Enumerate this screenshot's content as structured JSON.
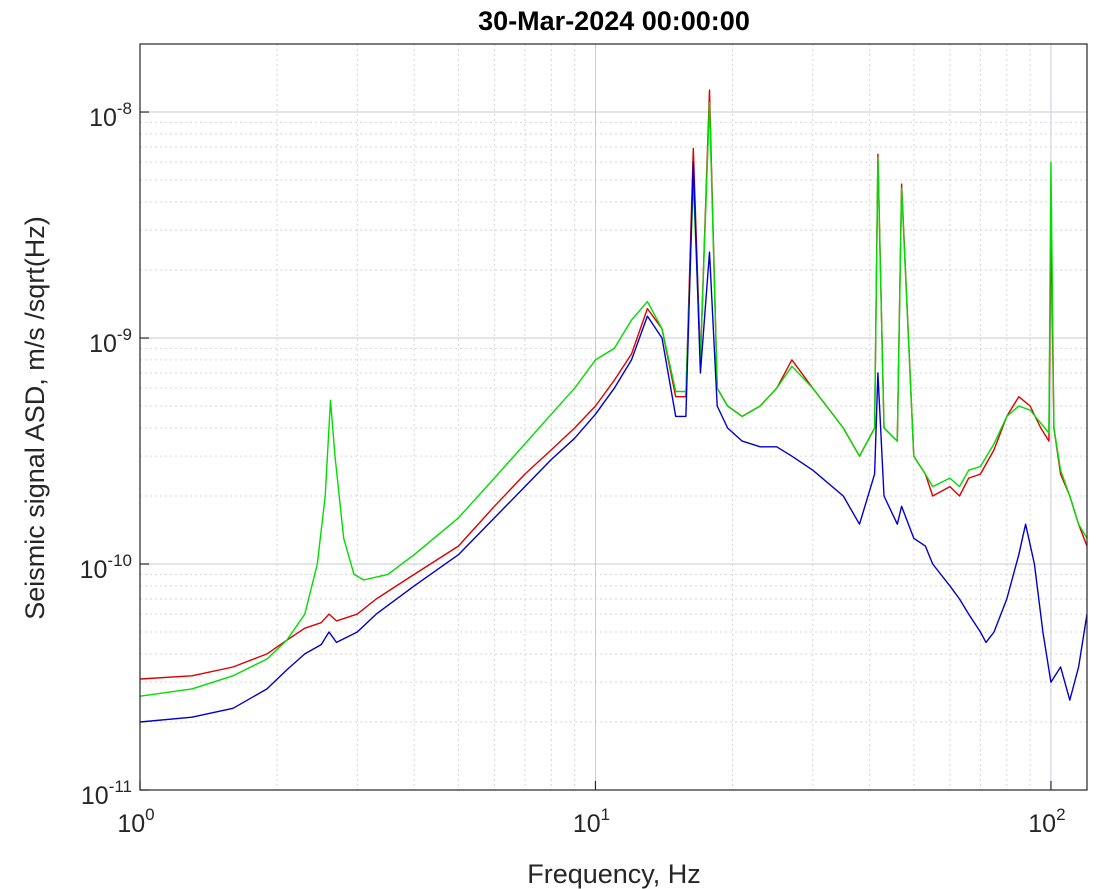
{
  "chart_data": {
    "type": "line",
    "title": "30-Mar-2024 00:00:00",
    "xlabel": "Frequency, Hz",
    "ylabel": "Seismic signal ASD, m/s /sqrt(Hz)",
    "xscale": "log",
    "yscale": "log",
    "xlim": [
      1,
      120
    ],
    "ylim": [
      1e-11,
      2e-08
    ],
    "grid": true,
    "minor_grid": true,
    "legend": "none",
    "xticks": [
      {
        "value": 1,
        "base": "10",
        "exp": "0"
      },
      {
        "value": 10,
        "base": "10",
        "exp": "1"
      },
      {
        "value": 100,
        "base": "10",
        "exp": "2"
      }
    ],
    "yticks": [
      {
        "value": 1e-11,
        "base": "10",
        "exp": "-11"
      },
      {
        "value": 1e-10,
        "base": "10",
        "exp": "-10"
      },
      {
        "value": 1e-09,
        "base": "10",
        "exp": "-9"
      },
      {
        "value": 1e-08,
        "base": "10",
        "exp": "-8"
      }
    ],
    "series": [
      {
        "color": "#dd0000",
        "x": [
          1.0,
          1.3,
          1.6,
          1.9,
          2.1,
          2.3,
          2.5,
          2.6,
          2.7,
          3.0,
          3.3,
          4.0,
          5.0,
          6.0,
          7.0,
          8.0,
          9.0,
          10.0,
          11.0,
          12.0,
          13.0,
          14.0,
          15.0,
          15.8,
          16.4,
          17.0,
          17.8,
          18.5,
          19.5,
          21.0,
          23.0,
          25.0,
          27.0,
          30.0,
          35.0,
          38.0,
          41.0,
          41.7,
          43.0,
          46.0,
          47.0,
          50.0,
          53.0,
          55.0,
          60.0,
          63.0,
          66.0,
          70.0,
          75.0,
          80.0,
          85.0,
          90.0,
          95.0,
          99.0,
          100.0,
          101.5,
          105.0,
          110.0,
          115.0,
          120.0
        ],
        "y": [
          3.1e-11,
          3.2e-11,
          3.5e-11,
          4e-11,
          4.6e-11,
          5.2e-11,
          5.5e-11,
          6e-11,
          5.6e-11,
          6e-11,
          7e-11,
          9e-11,
          1.2e-10,
          1.8e-10,
          2.5e-10,
          3.2e-10,
          4e-10,
          5e-10,
          6.5e-10,
          8.5e-10,
          1.35e-09,
          1.1e-09,
          5.5e-10,
          5.5e-10,
          6.9e-09,
          8e-10,
          1.25e-08,
          6e-10,
          5e-10,
          4.5e-10,
          5e-10,
          6e-10,
          8e-10,
          6e-10,
          4e-10,
          3e-10,
          4e-10,
          6.5e-09,
          4e-10,
          3.5e-10,
          4.8e-09,
          3e-10,
          2.5e-10,
          2e-10,
          2.2e-10,
          2e-10,
          2.4e-10,
          2.5e-10,
          3.2e-10,
          4.5e-10,
          5.5e-10,
          5e-10,
          4e-10,
          3.5e-10,
          3.3e-09,
          4e-10,
          2.5e-10,
          2e-10,
          1.5e-10,
          1.2e-10
        ]
      },
      {
        "color": "#00dd00",
        "x": [
          1.0,
          1.3,
          1.6,
          1.9,
          2.1,
          2.3,
          2.45,
          2.55,
          2.62,
          2.68,
          2.8,
          2.95,
          3.1,
          3.5,
          4.0,
          5.0,
          6.0,
          7.0,
          8.0,
          9.0,
          10.0,
          11.0,
          12.0,
          13.0,
          14.0,
          15.0,
          15.8,
          16.4,
          17.0,
          17.8,
          18.5,
          19.5,
          21.0,
          23.0,
          25.0,
          27.0,
          30.0,
          35.0,
          38.0,
          41.0,
          41.7,
          43.0,
          46.0,
          47.0,
          50.0,
          53.0,
          55.0,
          60.0,
          63.0,
          66.0,
          70.0,
          75.0,
          80.0,
          85.0,
          90.0,
          95.0,
          99.0,
          100.0,
          101.5,
          105.0,
          110.0,
          115.0,
          120.0
        ],
        "y": [
          2.6e-11,
          2.8e-11,
          3.2e-11,
          3.8e-11,
          4.6e-11,
          6e-11,
          1e-10,
          2e-10,
          5.3e-10,
          3e-10,
          1.3e-10,
          9e-11,
          8.5e-11,
          9e-11,
          1.1e-10,
          1.6e-10,
          2.4e-10,
          3.4e-10,
          4.6e-10,
          6e-10,
          8e-10,
          9e-10,
          1.2e-09,
          1.45e-09,
          1.1e-09,
          5.8e-10,
          5.8e-10,
          5e-09,
          8e-10,
          1.1e-08,
          6e-10,
          5e-10,
          4.5e-10,
          5e-10,
          6e-10,
          7.5e-10,
          6e-10,
          4e-10,
          3e-10,
          4e-10,
          6.3e-09,
          4e-10,
          3.5e-10,
          4.6e-09,
          3e-10,
          2.5e-10,
          2.2e-10,
          2.4e-10,
          2.2e-10,
          2.6e-10,
          2.7e-10,
          3.4e-10,
          4.5e-10,
          5e-10,
          4.8e-10,
          4.2e-10,
          3.8e-10,
          6e-09,
          4e-10,
          2.6e-10,
          2e-10,
          1.5e-10,
          1.3e-10
        ]
      },
      {
        "color": "#0000cc",
        "x": [
          1.0,
          1.3,
          1.6,
          1.9,
          2.1,
          2.3,
          2.5,
          2.6,
          2.7,
          3.0,
          3.3,
          4.0,
          5.0,
          6.0,
          7.0,
          8.0,
          9.0,
          10.0,
          11.0,
          12.0,
          13.0,
          14.0,
          15.0,
          15.8,
          16.4,
          17.0,
          17.8,
          18.5,
          19.5,
          21.0,
          23.0,
          25.0,
          27.0,
          30.0,
          35.0,
          38.0,
          41.0,
          41.7,
          43.0,
          46.0,
          47.0,
          50.0,
          53.0,
          55.0,
          60.0,
          63.0,
          66.0,
          70.0,
          72.0,
          75.0,
          80.0,
          85.0,
          88.0,
          92.0,
          96.0,
          100.0,
          105.0,
          110.0,
          115.0,
          120.0
        ],
        "y": [
          2e-11,
          2.1e-11,
          2.3e-11,
          2.8e-11,
          3.4e-11,
          4e-11,
          4.4e-11,
          5e-11,
          4.5e-11,
          5e-11,
          6e-11,
          8e-11,
          1.1e-10,
          1.6e-10,
          2.2e-10,
          2.9e-10,
          3.6e-10,
          4.6e-10,
          6e-10,
          8e-10,
          1.25e-09,
          1e-09,
          4.5e-10,
          4.5e-10,
          6e-09,
          7e-10,
          2.4e-09,
          5e-10,
          4e-10,
          3.5e-10,
          3.3e-10,
          3.3e-10,
          3e-10,
          2.6e-10,
          2e-10,
          1.5e-10,
          2.5e-10,
          7e-10,
          2e-10,
          1.5e-10,
          1.8e-10,
          1.3e-10,
          1.2e-10,
          1e-10,
          8e-11,
          7e-11,
          6e-11,
          5e-11,
          4.5e-11,
          5e-11,
          7e-11,
          1.1e-10,
          1.5e-10,
          1e-10,
          5e-11,
          3e-11,
          3.5e-11,
          2.5e-11,
          3.5e-11,
          6e-11
        ]
      }
    ]
  }
}
